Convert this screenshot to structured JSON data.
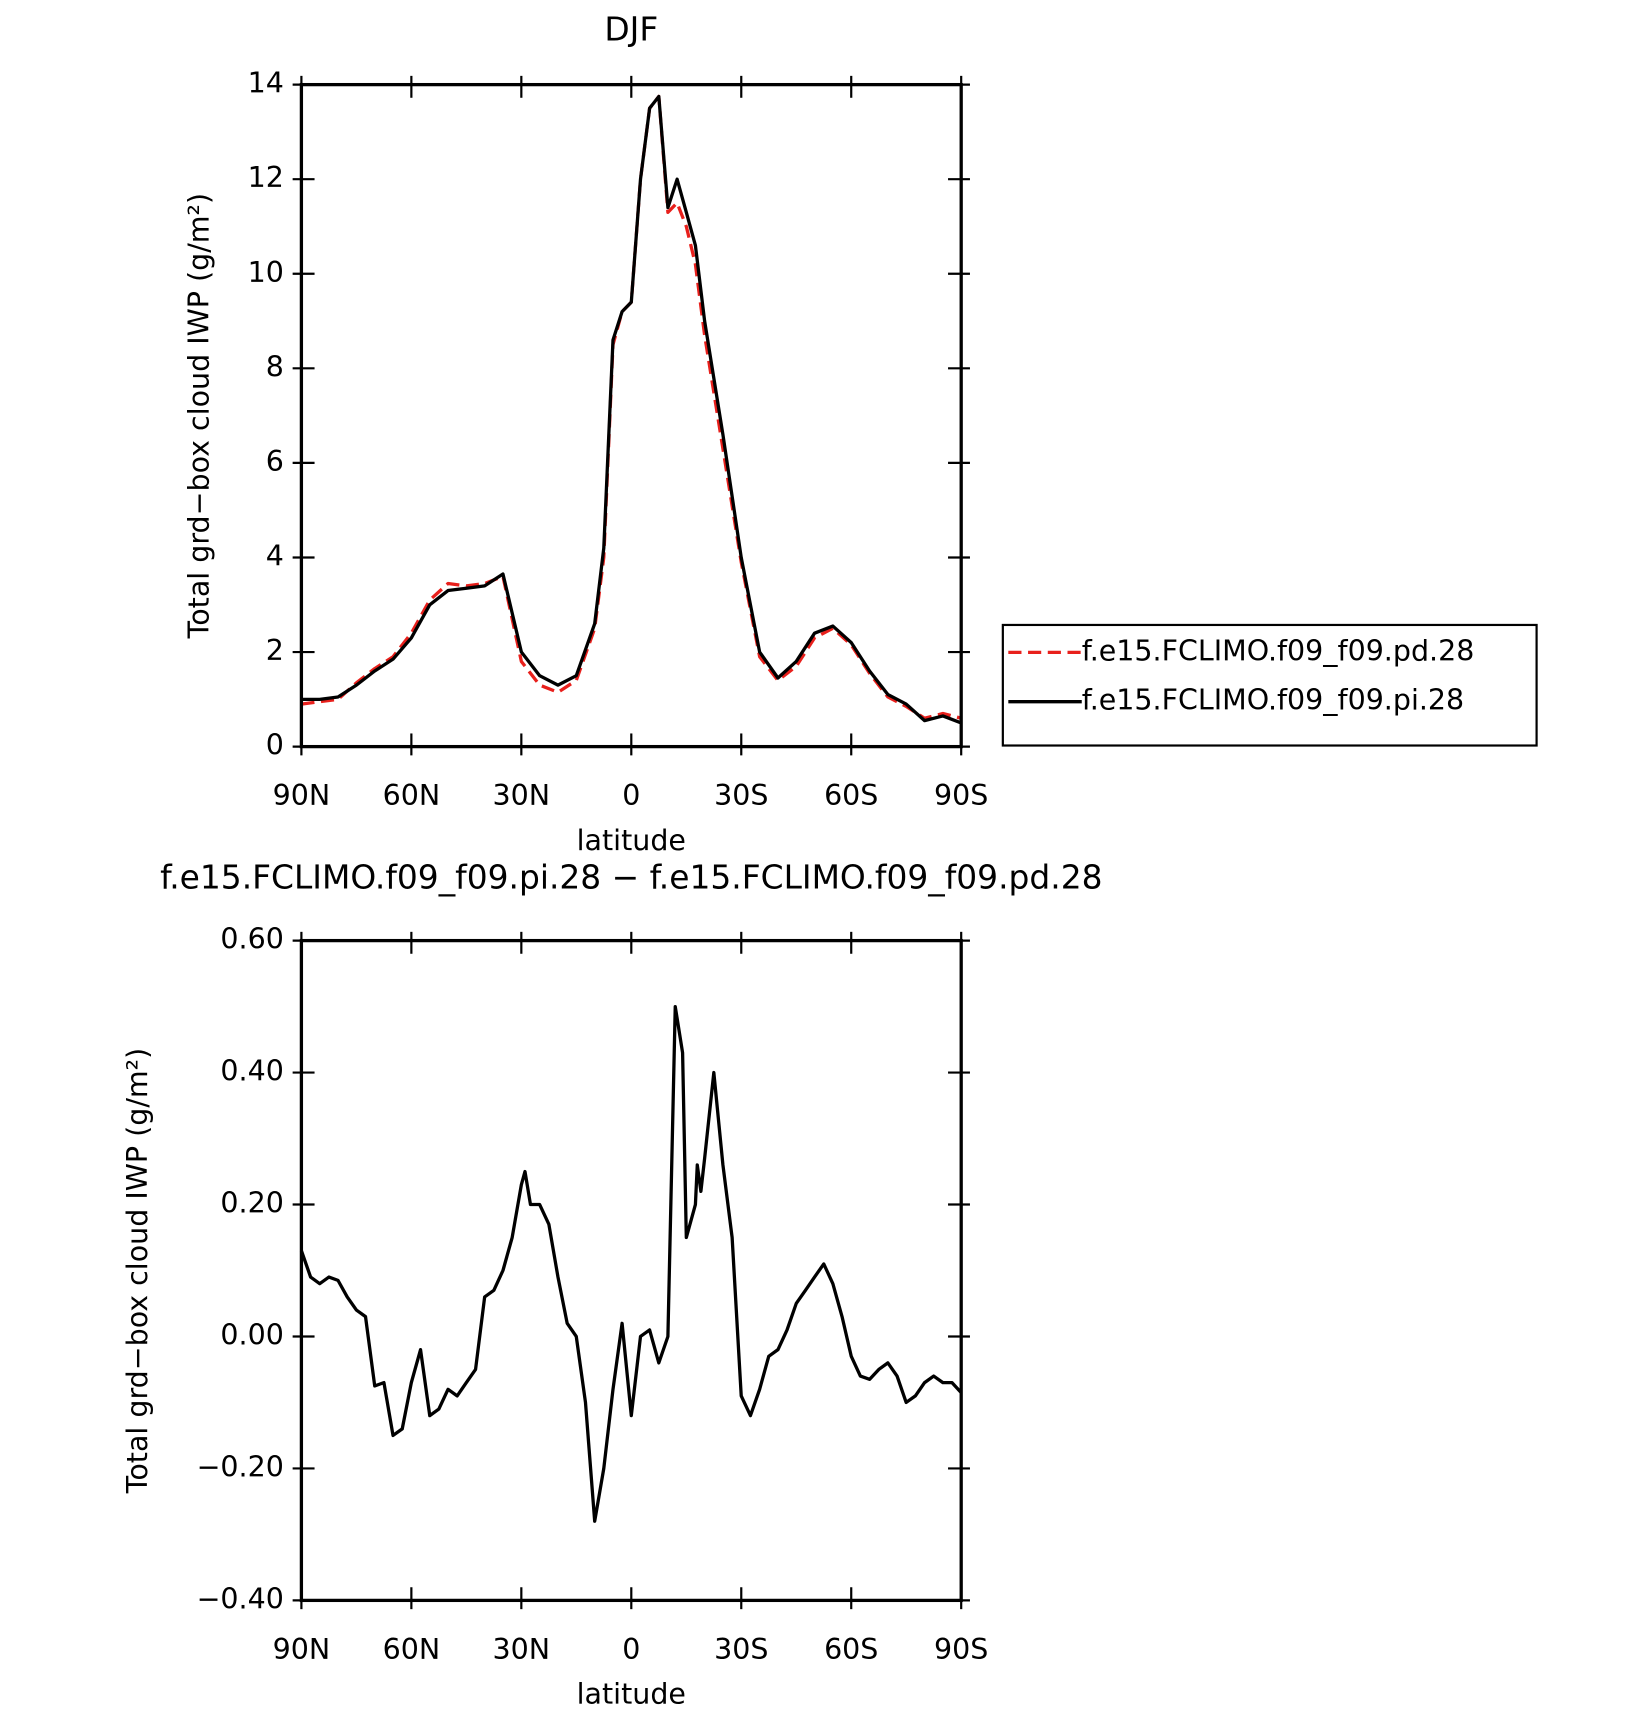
{
  "chart_data": [
    {
      "type": "line",
      "title": "DJF",
      "xlabel": "latitude",
      "ylabel": "Total grd−box cloud IWP (g/m²)",
      "x": [
        90,
        85,
        80,
        75,
        70,
        65,
        60,
        55,
        50,
        45,
        40,
        35,
        30,
        25,
        20,
        15,
        10,
        7.5,
        5,
        2.5,
        0,
        -2.5,
        -5,
        -7.5,
        -10,
        -12.5,
        -15,
        -17.5,
        -20,
        -25,
        -30,
        -35,
        -40,
        -45,
        -50,
        -55,
        -60,
        -65,
        -70,
        -75,
        -80,
        -85,
        -90
      ],
      "series": [
        {
          "name": "f.e15.FCLIMO.f09_f09.pd.28",
          "color": "#e8201c",
          "linestyle": "dashed",
          "values": [
            0.9,
            0.95,
            1.0,
            1.35,
            1.65,
            1.9,
            2.4,
            3.1,
            3.45,
            3.4,
            3.45,
            3.6,
            1.8,
            1.3,
            1.15,
            1.4,
            2.5,
            4.0,
            8.5,
            9.2,
            9.4,
            12.0,
            13.5,
            13.75,
            11.3,
            11.5,
            11.0,
            10.2,
            8.7,
            6.3,
            3.9,
            1.9,
            1.4,
            1.7,
            2.3,
            2.5,
            2.15,
            1.55,
            1.05,
            0.85,
            0.6,
            0.7,
            0.6
          ]
        },
        {
          "name": "f.e15.FCLIMO.f09_f09.pi.28",
          "color": "#000000",
          "linestyle": "solid",
          "values": [
            1.0,
            1.0,
            1.05,
            1.3,
            1.6,
            1.85,
            2.3,
            3.0,
            3.3,
            3.35,
            3.4,
            3.65,
            2.0,
            1.5,
            1.3,
            1.5,
            2.6,
            4.2,
            8.6,
            9.2,
            9.4,
            12.0,
            13.5,
            13.75,
            11.4,
            12.0,
            11.3,
            10.6,
            9.0,
            6.6,
            4.0,
            2.0,
            1.45,
            1.8,
            2.4,
            2.55,
            2.2,
            1.6,
            1.1,
            0.9,
            0.55,
            0.65,
            0.5
          ]
        }
      ],
      "xlim": [
        90,
        -90
      ],
      "xticks": [
        {
          "value": 90,
          "label": "90N"
        },
        {
          "value": 60,
          "label": "60N"
        },
        {
          "value": 30,
          "label": "30N"
        },
        0,
        {
          "value": -30,
          "label": "30S"
        },
        {
          "value": -60,
          "label": "60S"
        },
        {
          "value": -90,
          "label": "90S"
        }
      ],
      "ylim": [
        0,
        14
      ],
      "yticks": [
        0,
        2,
        4,
        6,
        8,
        10,
        12,
        14
      ],
      "legend": "right"
    },
    {
      "type": "line",
      "title": "f.e15.FCLIMO.f09_f09.pi.28 − f.e15.FCLIMO.f09_f09.pd.28",
      "xlabel": "latitude",
      "ylabel": "Total grd−box cloud IWP (g/m²)",
      "x": [
        90,
        87.5,
        85,
        82.5,
        80,
        77.5,
        75,
        72.5,
        70,
        67.5,
        65,
        62.5,
        60,
        57.5,
        55,
        52.5,
        50,
        47.5,
        45,
        42.5,
        40,
        37.5,
        35,
        32.5,
        30,
        29,
        27.5,
        25,
        22.5,
        20,
        17.5,
        15,
        12.5,
        10,
        7.5,
        5,
        2.5,
        0,
        -2.5,
        -5,
        -7.5,
        -10,
        -12,
        -14,
        -15,
        -17.5,
        -18,
        -19,
        -20,
        -22.5,
        -25,
        -27.5,
        -30,
        -32.5,
        -35,
        -37.5,
        -40,
        -42.5,
        -45,
        -47.5,
        -50,
        -52.5,
        -55,
        -57.5,
        -60,
        -62.5,
        -65,
        -67.5,
        -70,
        -72.5,
        -75,
        -77.5,
        -80,
        -82.5,
        -85,
        -87.5,
        -90
      ],
      "values": [
        0.13,
        0.09,
        0.08,
        0.09,
        0.085,
        0.06,
        0.04,
        0.03,
        -0.075,
        -0.07,
        -0.15,
        -0.14,
        -0.07,
        -0.02,
        -0.12,
        -0.11,
        -0.08,
        -0.09,
        -0.07,
        -0.05,
        0.06,
        0.07,
        0.1,
        0.15,
        0.23,
        0.25,
        0.2,
        0.2,
        0.17,
        0.09,
        0.02,
        0.0,
        -0.1,
        -0.28,
        -0.2,
        -0.08,
        0.02,
        -0.12,
        0.0,
        0.01,
        -0.04,
        0.0,
        0.5,
        0.43,
        0.15,
        0.2,
        0.26,
        0.22,
        0.27,
        0.4,
        0.26,
        0.15,
        -0.09,
        -0.12,
        -0.08,
        -0.03,
        -0.02,
        0.01,
        0.05,
        0.07,
        0.09,
        0.11,
        0.08,
        0.03,
        -0.03,
        -0.06,
        -0.065,
        -0.05,
        -0.04,
        -0.06,
        -0.1,
        -0.09,
        -0.07,
        -0.06,
        -0.07,
        -0.07,
        -0.085
      ],
      "color": "#000000",
      "xlim": [
        90,
        -90
      ],
      "xticks": [
        {
          "value": 90,
          "label": "90N"
        },
        {
          "value": 60,
          "label": "60N"
        },
        {
          "value": 30,
          "label": "30N"
        },
        0,
        {
          "value": -30,
          "label": "30S"
        },
        {
          "value": -60,
          "label": "60S"
        },
        {
          "value": -90,
          "label": "90S"
        }
      ],
      "ylim": [
        -0.4,
        0.6
      ],
      "yticks": [
        {
          "value": 0.6,
          "label": "0.60"
        },
        {
          "value": 0.4,
          "label": "0.40"
        },
        {
          "value": 0.2,
          "label": "0.20"
        },
        {
          "value": 0,
          "label": "0.00"
        },
        {
          "value": -0.2,
          "label": "−0.20"
        },
        {
          "value": -0.4,
          "label": "−0.40"
        }
      ]
    }
  ]
}
